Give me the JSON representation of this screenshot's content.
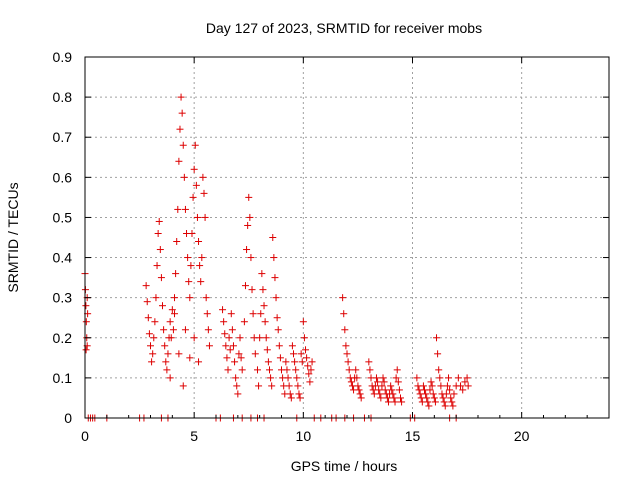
{
  "chart_data": {
    "type": "scatter",
    "title": "Day 127 of 2023, SRMTID for receiver mobs",
    "xlabel": "GPS time / hours",
    "ylabel": "SRMTID / TECUs",
    "xlim": [
      0,
      24
    ],
    "ylim": [
      0,
      0.9
    ],
    "xticks": [
      0,
      5,
      10,
      15,
      20
    ],
    "yticks": [
      0,
      0.1,
      0.2,
      0.3,
      0.4,
      0.5,
      0.6,
      0.7,
      0.8,
      0.9
    ],
    "xtick_labels": [
      "0",
      "5",
      "10",
      "15",
      "20"
    ],
    "ytick_labels": [
      "0",
      "0.1",
      "0.2",
      "0.3",
      "0.4",
      "0.5",
      "0.6",
      "0.7",
      "0.8",
      "0.9"
    ],
    "grid": true,
    "marker": "+",
    "color": "#dd0000",
    "series": [
      {
        "points": [
          [
            0.0,
            0.36
          ],
          [
            0.02,
            0.32
          ],
          [
            0.04,
            0.28
          ],
          [
            0.06,
            0.24
          ],
          [
            0.08,
            0.2
          ],
          [
            0.1,
            0.18
          ],
          [
            0.05,
            0.17
          ],
          [
            0.1,
            0.3
          ],
          [
            0.12,
            0.26
          ],
          [
            0.15,
            0.0
          ],
          [
            0.25,
            0.0
          ],
          [
            0.35,
            0.0
          ],
          [
            0.45,
            0.0
          ],
          [
            1.0,
            0.0
          ],
          [
            2.5,
            0.0
          ],
          [
            2.7,
            0.0
          ],
          [
            3.5,
            0.0
          ],
          [
            3.8,
            0.0
          ],
          [
            6.0,
            0.0
          ],
          [
            6.2,
            0.0
          ],
          [
            6.8,
            0.0
          ],
          [
            7.2,
            0.0
          ],
          [
            7.6,
            0.0
          ],
          [
            7.9,
            0.0
          ],
          [
            8.2,
            0.0
          ],
          [
            9.7,
            0.0
          ],
          [
            10.5,
            0.0
          ],
          [
            10.8,
            0.0
          ],
          [
            11.3,
            0.0
          ],
          [
            11.5,
            0.0
          ],
          [
            11.9,
            0.0
          ],
          [
            12.3,
            0.0
          ],
          [
            12.8,
            0.0
          ],
          [
            13.1,
            0.0
          ],
          [
            14.9,
            0.0
          ],
          [
            15.1,
            0.0
          ],
          [
            16.7,
            0.0
          ],
          [
            17.0,
            0.0
          ],
          [
            2.8,
            0.33
          ],
          [
            2.85,
            0.29
          ],
          [
            2.9,
            0.25
          ],
          [
            2.95,
            0.21
          ],
          [
            3.0,
            0.18
          ],
          [
            3.05,
            0.14
          ],
          [
            3.1,
            0.16
          ],
          [
            3.15,
            0.2
          ],
          [
            3.2,
            0.24
          ],
          [
            3.25,
            0.3
          ],
          [
            3.3,
            0.38
          ],
          [
            3.35,
            0.46
          ],
          [
            3.4,
            0.49
          ],
          [
            3.45,
            0.42
          ],
          [
            3.5,
            0.35
          ],
          [
            3.55,
            0.28
          ],
          [
            3.6,
            0.22
          ],
          [
            3.65,
            0.18
          ],
          [
            3.7,
            0.14
          ],
          [
            3.75,
            0.12
          ],
          [
            3.8,
            0.16
          ],
          [
            3.85,
            0.2
          ],
          [
            3.9,
            0.24
          ],
          [
            3.95,
            0.2
          ],
          [
            4.0,
            0.27
          ],
          [
            4.05,
            0.22
          ],
          [
            4.1,
            0.3
          ],
          [
            4.15,
            0.36
          ],
          [
            4.2,
            0.44
          ],
          [
            4.25,
            0.52
          ],
          [
            4.3,
            0.64
          ],
          [
            4.35,
            0.72
          ],
          [
            4.4,
            0.8
          ],
          [
            4.45,
            0.76
          ],
          [
            4.5,
            0.68
          ],
          [
            4.55,
            0.6
          ],
          [
            4.6,
            0.52
          ],
          [
            4.65,
            0.46
          ],
          [
            4.7,
            0.4
          ],
          [
            4.75,
            0.34
          ],
          [
            4.8,
            0.3
          ],
          [
            4.85,
            0.38
          ],
          [
            4.9,
            0.46
          ],
          [
            4.95,
            0.55
          ],
          [
            5.0,
            0.62
          ],
          [
            5.05,
            0.68
          ],
          [
            5.1,
            0.58
          ],
          [
            5.15,
            0.5
          ],
          [
            5.2,
            0.44
          ],
          [
            5.25,
            0.38
          ],
          [
            5.3,
            0.34
          ],
          [
            5.35,
            0.4
          ],
          [
            5.4,
            0.6
          ],
          [
            5.45,
            0.56
          ],
          [
            5.5,
            0.5
          ],
          [
            5.55,
            0.3
          ],
          [
            5.6,
            0.26
          ],
          [
            5.65,
            0.22
          ],
          [
            5.7,
            0.18
          ],
          [
            4.5,
            0.08
          ],
          [
            4.3,
            0.16
          ],
          [
            4.1,
            0.26
          ],
          [
            3.9,
            0.1
          ],
          [
            4.6,
            0.22
          ],
          [
            4.8,
            0.15
          ],
          [
            5.0,
            0.2
          ],
          [
            5.2,
            0.14
          ],
          [
            6.3,
            0.27
          ],
          [
            6.35,
            0.24
          ],
          [
            6.4,
            0.21
          ],
          [
            6.45,
            0.18
          ],
          [
            6.5,
            0.15
          ],
          [
            6.55,
            0.12
          ],
          [
            6.6,
            0.2
          ],
          [
            6.65,
            0.17
          ],
          [
            6.7,
            0.26
          ],
          [
            6.75,
            0.22
          ],
          [
            6.8,
            0.18
          ],
          [
            6.85,
            0.14
          ],
          [
            6.9,
            0.1
          ],
          [
            6.95,
            0.08
          ],
          [
            7.0,
            0.06
          ],
          [
            7.05,
            0.16
          ],
          [
            7.1,
            0.2
          ],
          [
            7.15,
            0.15
          ],
          [
            7.2,
            0.12
          ],
          [
            7.3,
            0.24
          ],
          [
            7.35,
            0.33
          ],
          [
            7.4,
            0.42
          ],
          [
            7.45,
            0.48
          ],
          [
            7.5,
            0.55
          ],
          [
            7.55,
            0.5
          ],
          [
            7.6,
            0.4
          ],
          [
            7.65,
            0.32
          ],
          [
            7.7,
            0.26
          ],
          [
            7.75,
            0.2
          ],
          [
            7.8,
            0.16
          ],
          [
            7.9,
            0.12
          ],
          [
            7.95,
            0.08
          ],
          [
            8.0,
            0.2
          ],
          [
            8.05,
            0.26
          ],
          [
            8.1,
            0.36
          ],
          [
            8.15,
            0.32
          ],
          [
            8.2,
            0.28
          ],
          [
            8.25,
            0.24
          ],
          [
            8.3,
            0.2
          ],
          [
            8.35,
            0.17
          ],
          [
            8.4,
            0.14
          ],
          [
            8.45,
            0.12
          ],
          [
            8.5,
            0.1
          ],
          [
            8.55,
            0.08
          ],
          [
            8.6,
            0.45
          ],
          [
            8.65,
            0.4
          ],
          [
            8.7,
            0.35
          ],
          [
            8.75,
            0.3
          ],
          [
            8.8,
            0.25
          ],
          [
            8.85,
            0.22
          ],
          [
            8.9,
            0.18
          ],
          [
            8.95,
            0.15
          ],
          [
            9.0,
            0.12
          ],
          [
            9.05,
            0.1
          ],
          [
            9.1,
            0.08
          ],
          [
            9.15,
            0.06
          ],
          [
            9.2,
            0.14
          ],
          [
            9.25,
            0.12
          ],
          [
            9.3,
            0.1
          ],
          [
            9.35,
            0.08
          ],
          [
            9.4,
            0.06
          ],
          [
            9.45,
            0.05
          ],
          [
            9.5,
            0.18
          ],
          [
            9.55,
            0.16
          ],
          [
            9.6,
            0.14
          ],
          [
            9.65,
            0.12
          ],
          [
            9.7,
            0.1
          ],
          [
            9.75,
            0.08
          ],
          [
            9.8,
            0.06
          ],
          [
            9.85,
            0.05
          ],
          [
            9.9,
            0.16
          ],
          [
            9.95,
            0.14
          ],
          [
            10.0,
            0.24
          ],
          [
            10.05,
            0.2
          ],
          [
            10.1,
            0.17
          ],
          [
            10.15,
            0.15
          ],
          [
            10.2,
            0.13
          ],
          [
            10.25,
            0.11
          ],
          [
            10.3,
            0.09
          ],
          [
            10.35,
            0.12
          ],
          [
            10.4,
            0.14
          ],
          [
            11.8,
            0.3
          ],
          [
            11.85,
            0.26
          ],
          [
            11.9,
            0.22
          ],
          [
            11.95,
            0.18
          ],
          [
            12.0,
            0.16
          ],
          [
            12.05,
            0.14
          ],
          [
            12.1,
            0.12
          ],
          [
            12.15,
            0.1
          ],
          [
            12.2,
            0.09
          ],
          [
            12.25,
            0.08
          ],
          [
            12.3,
            0.07
          ],
          [
            12.35,
            0.1
          ],
          [
            12.4,
            0.12
          ],
          [
            12.45,
            0.1
          ],
          [
            12.5,
            0.08
          ],
          [
            12.55,
            0.07
          ],
          [
            12.6,
            0.06
          ],
          [
            12.65,
            0.05
          ],
          [
            13.0,
            0.14
          ],
          [
            13.05,
            0.12
          ],
          [
            13.1,
            0.1
          ],
          [
            13.15,
            0.08
          ],
          [
            13.2,
            0.07
          ],
          [
            13.25,
            0.06
          ],
          [
            13.3,
            0.08
          ],
          [
            13.35,
            0.1
          ],
          [
            13.4,
            0.09
          ],
          [
            13.45,
            0.07
          ],
          [
            13.5,
            0.06
          ],
          [
            13.55,
            0.05
          ],
          [
            13.6,
            0.08
          ],
          [
            13.65,
            0.1
          ],
          [
            13.7,
            0.09
          ],
          [
            13.75,
            0.07
          ],
          [
            13.8,
            0.06
          ],
          [
            13.85,
            0.05
          ],
          [
            13.9,
            0.04
          ],
          [
            13.95,
            0.06
          ],
          [
            14.0,
            0.08
          ],
          [
            14.05,
            0.07
          ],
          [
            14.1,
            0.06
          ],
          [
            14.15,
            0.05
          ],
          [
            14.2,
            0.04
          ],
          [
            14.25,
            0.1
          ],
          [
            14.3,
            0.12
          ],
          [
            14.35,
            0.09
          ],
          [
            14.4,
            0.07
          ],
          [
            14.45,
            0.05
          ],
          [
            14.5,
            0.04
          ],
          [
            15.2,
            0.1
          ],
          [
            15.25,
            0.08
          ],
          [
            15.3,
            0.07
          ],
          [
            15.35,
            0.06
          ],
          [
            15.4,
            0.05
          ],
          [
            15.45,
            0.04
          ],
          [
            15.5,
            0.08
          ],
          [
            15.55,
            0.07
          ],
          [
            15.6,
            0.06
          ],
          [
            15.65,
            0.05
          ],
          [
            15.7,
            0.04
          ],
          [
            15.75,
            0.03
          ],
          [
            15.8,
            0.07
          ],
          [
            15.85,
            0.09
          ],
          [
            15.9,
            0.08
          ],
          [
            15.95,
            0.06
          ],
          [
            16.0,
            0.05
          ],
          [
            16.05,
            0.04
          ],
          [
            16.1,
            0.2
          ],
          [
            16.15,
            0.16
          ],
          [
            16.2,
            0.12
          ],
          [
            16.25,
            0.1
          ],
          [
            16.3,
            0.08
          ],
          [
            16.35,
            0.06
          ],
          [
            16.4,
            0.05
          ],
          [
            16.45,
            0.04
          ],
          [
            16.5,
            0.03
          ],
          [
            16.55,
            0.06
          ],
          [
            16.6,
            0.08
          ],
          [
            16.65,
            0.1
          ],
          [
            16.7,
            0.07
          ],
          [
            16.75,
            0.05
          ],
          [
            16.8,
            0.04
          ],
          [
            16.85,
            0.03
          ],
          [
            16.9,
            0.06
          ],
          [
            17.0,
            0.08
          ],
          [
            17.1,
            0.1
          ],
          [
            17.2,
            0.08
          ],
          [
            17.3,
            0.07
          ],
          [
            17.4,
            0.09
          ],
          [
            17.5,
            0.1
          ],
          [
            17.55,
            0.08
          ]
        ]
      }
    ]
  }
}
